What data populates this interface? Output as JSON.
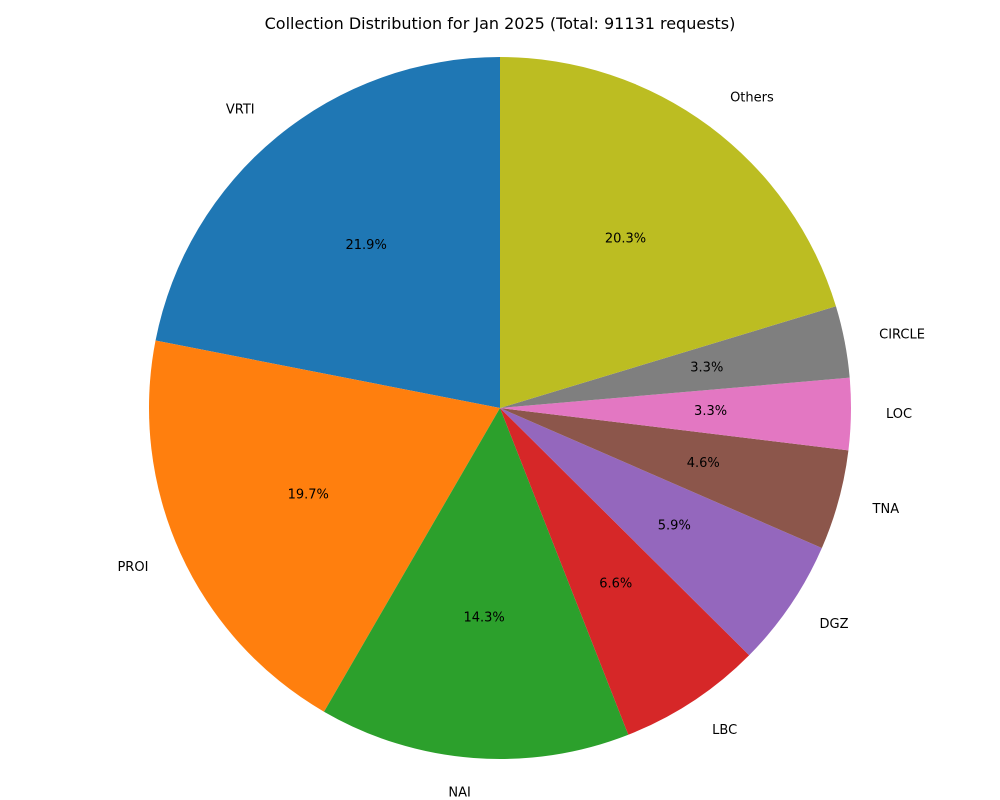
{
  "chart_data": {
    "type": "pie",
    "title": "Collection Distribution for Jan 2025 (Total: 91131 requests)",
    "start_angle_deg": 90,
    "direction": "counterclockwise",
    "slices": [
      {
        "label": "VRTI",
        "percent_label": "21.9%",
        "value": 21.9,
        "color": "#1f77b4"
      },
      {
        "label": "PROI",
        "percent_label": "19.7%",
        "value": 19.7,
        "color": "#ff7f0e"
      },
      {
        "label": "NAI",
        "percent_label": "14.3%",
        "value": 14.3,
        "color": "#2ca02c"
      },
      {
        "label": "LBC",
        "percent_label": "6.6%",
        "value": 6.6,
        "color": "#d62728"
      },
      {
        "label": "DGZ",
        "percent_label": "5.9%",
        "value": 5.9,
        "color": "#9467bd"
      },
      {
        "label": "TNA",
        "percent_label": "4.6%",
        "value": 4.6,
        "color": "#8c564b"
      },
      {
        "label": "LOC",
        "percent_label": "3.3%",
        "value": 3.3,
        "color": "#e377c2"
      },
      {
        "label": "CIRCLE",
        "percent_label": "3.3%",
        "value": 3.3,
        "color": "#7f7f7f"
      },
      {
        "label": "Others",
        "percent_label": "20.3%",
        "value": 20.3,
        "color": "#bcbd22"
      }
    ]
  }
}
